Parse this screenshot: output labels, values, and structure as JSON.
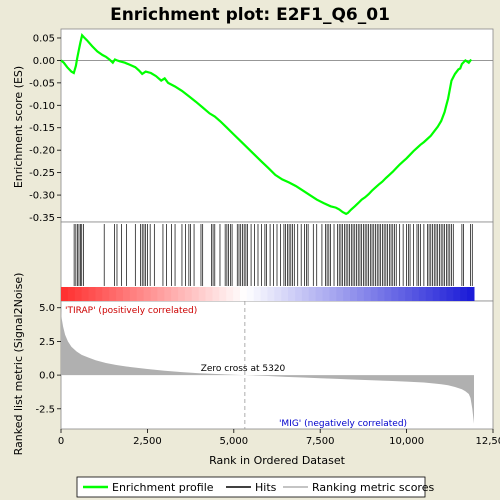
{
  "chart_data": {
    "type": "line",
    "title": "Enrichment plot: E2F1_Q6_01",
    "panels": {
      "enrichment": {
        "ylabel": "Enrichment score (ES)",
        "ylim": [
          -0.36,
          0.07
        ],
        "yticks": [
          0.05,
          0.0,
          -0.05,
          -0.1,
          -0.15,
          -0.2,
          -0.25,
          -0.3,
          -0.35
        ],
        "ytick_labels": [
          "0.05",
          "0.00",
          "-0.05",
          "-0.10",
          "-0.15",
          "-0.20",
          "-0.25",
          "-0.30",
          "-0.35"
        ],
        "series": [
          {
            "name": "Enrichment profile",
            "color": "#00ff00",
            "x": [
              0,
              80,
              180,
              300,
              370,
              430,
              470,
              520,
              560,
              610,
              660,
              750,
              900,
              1050,
              1200,
              1300,
              1400,
              1500,
              1560,
              1620,
              1700,
              1850,
              2000,
              2150,
              2250,
              2350,
              2450,
              2600,
              2750,
              2900,
              3000,
              3100,
              3300,
              3500,
              3700,
              3900,
              4100,
              4300,
              4450,
              4600,
              4800,
              5000,
              5200,
              5400,
              5600,
              5800,
              6000,
              6200,
              6400,
              6600,
              6800,
              7000,
              7200,
              7400,
              7600,
              7800,
              7950,
              8050,
              8150,
              8250,
              8300,
              8400,
              8500,
              8600,
              8700,
              8800,
              8900,
              9000,
              9100,
              9200,
              9300,
              9400,
              9500,
              9600,
              9700,
              9800,
              9900,
              10000,
              10100,
              10200,
              10300,
              10400,
              10500,
              10600,
              10700,
              10800,
              10900,
              11000,
              11100,
              11150,
              11200,
              11250,
              11300,
              11400,
              11500,
              11550,
              11600,
              11700,
              11800,
              11870
            ],
            "y": [
              0.0,
              -0.005,
              -0.015,
              -0.025,
              -0.028,
              -0.012,
              0.005,
              0.025,
              0.04,
              0.056,
              0.052,
              0.045,
              0.032,
              0.02,
              0.012,
              0.008,
              0.002,
              -0.005,
              0.002,
              0.0,
              -0.002,
              -0.005,
              -0.01,
              -0.015,
              -0.022,
              -0.03,
              -0.025,
              -0.028,
              -0.035,
              -0.045,
              -0.04,
              -0.05,
              -0.058,
              -0.068,
              -0.08,
              -0.092,
              -0.105,
              -0.118,
              -0.125,
              -0.135,
              -0.15,
              -0.165,
              -0.18,
              -0.195,
              -0.21,
              -0.225,
              -0.24,
              -0.255,
              -0.265,
              -0.272,
              -0.28,
              -0.29,
              -0.3,
              -0.31,
              -0.318,
              -0.325,
              -0.328,
              -0.332,
              -0.338,
              -0.342,
              -0.34,
              -0.332,
              -0.325,
              -0.318,
              -0.31,
              -0.305,
              -0.298,
              -0.29,
              -0.283,
              -0.276,
              -0.27,
              -0.262,
              -0.255,
              -0.248,
              -0.24,
              -0.232,
              -0.225,
              -0.218,
              -0.21,
              -0.202,
              -0.195,
              -0.188,
              -0.182,
              -0.175,
              -0.168,
              -0.158,
              -0.148,
              -0.135,
              -0.115,
              -0.1,
              -0.085,
              -0.065,
              -0.045,
              -0.03,
              -0.02,
              -0.018,
              -0.008,
              0.0,
              -0.005,
              0.002
            ]
          }
        ]
      },
      "hits": {
        "series_name": "Hits",
        "positions": [
          380,
          430,
          480,
          520,
          560,
          600,
          650,
          1250,
          1550,
          1620,
          1750,
          1900,
          2150,
          2300,
          2350,
          2400,
          2450,
          2500,
          2580,
          2700,
          2950,
          3050,
          3200,
          3300,
          3500,
          3600,
          3700,
          3750,
          3850,
          4050,
          4100,
          4350,
          4400,
          4450,
          4600,
          4750,
          4800,
          4850,
          4900,
          4950,
          5100,
          5150,
          5200,
          5250,
          5300,
          5350,
          5400,
          5500,
          5600,
          5700,
          5800,
          5900,
          5950,
          6050,
          6150,
          6250,
          6350,
          6450,
          6500,
          6550,
          6600,
          6650,
          6700,
          6750,
          6850,
          6950,
          7050,
          7100,
          7150,
          7300,
          7400,
          7550,
          7650,
          7700,
          7750,
          7800,
          7900,
          8000,
          8050,
          8100,
          8150,
          8200,
          8250,
          8300,
          8350,
          8400,
          8450,
          8500,
          8550,
          8600,
          8650,
          8700,
          8750,
          8800,
          8850,
          8900,
          8950,
          9000,
          9050,
          9100,
          9150,
          9200,
          9250,
          9300,
          9350,
          9400,
          9450,
          9500,
          9550,
          9600,
          9650,
          9700,
          9800,
          9900,
          10000,
          10050,
          10100,
          10200,
          10300,
          10350,
          10400,
          10500,
          10600,
          10650,
          10700,
          10750,
          10800,
          10850,
          10900,
          10950,
          11000,
          11050,
          11100,
          11150,
          11200,
          11250,
          11300,
          11350,
          11600,
          11650,
          11850,
          11900
        ]
      },
      "ranking": {
        "ylabel": "Ranked list metric (Signal2Noise)",
        "ylim": [
          -4.0,
          5.5
        ],
        "yticks": [
          5.0,
          2.5,
          0.0,
          -2.5
        ],
        "ytick_labels": [
          "5.0",
          "2.5",
          "0.0",
          "-2.5"
        ],
        "series_name": "Ranking metric scores",
        "color": "#b0b0b0",
        "x": [
          0,
          20,
          60,
          120,
          200,
          300,
          450,
          600,
          800,
          1000,
          1300,
          1600,
          2000,
          2500,
          3000,
          3500,
          4000,
          4500,
          5000,
          5320,
          6000,
          6500,
          7000,
          7500,
          8000,
          8500,
          9000,
          9500,
          10000,
          10500,
          10800,
          11000,
          11200,
          11400,
          11600,
          11700,
          11800,
          11850,
          11900,
          11950
        ],
        "y": [
          4.8,
          4.2,
          3.6,
          3.0,
          2.5,
          2.1,
          1.75,
          1.5,
          1.3,
          1.1,
          0.9,
          0.75,
          0.6,
          0.45,
          0.32,
          0.22,
          0.14,
          0.08,
          0.03,
          0.0,
          -0.07,
          -0.13,
          -0.18,
          -0.23,
          -0.28,
          -0.33,
          -0.38,
          -0.43,
          -0.48,
          -0.55,
          -0.62,
          -0.68,
          -0.76,
          -0.88,
          -1.05,
          -1.2,
          -1.4,
          -1.7,
          -2.5,
          -3.6
        ]
      }
    },
    "xlabel": "Rank in Ordered Dataset",
    "xlim": [
      0,
      12500
    ],
    "xticks": [
      0,
      2500,
      5000,
      7500,
      10000,
      12500
    ],
    "xtick_labels": [
      "0",
      "2,500",
      "5,000",
      "7,500",
      "10,000",
      "12,500"
    ],
    "zero_cross": 5320,
    "annotations": {
      "positive": "'TIRAP' (positively correlated)",
      "zero_cross": "Zero cross at 5320",
      "negative": "'MIG' (negatively correlated)"
    },
    "colors": {
      "profile": "#00ff00",
      "positive_label": "#cc0000",
      "negative_label": "#0000cc",
      "metric_fill": "#b0b0b0"
    },
    "legend": {
      "placement": "bottom",
      "items": [
        {
          "label": "Enrichment profile",
          "icon": "green-line"
        },
        {
          "label": "Hits",
          "icon": "black-line"
        },
        {
          "label": "Ranking metric scores",
          "icon": "gray-line"
        }
      ]
    }
  }
}
